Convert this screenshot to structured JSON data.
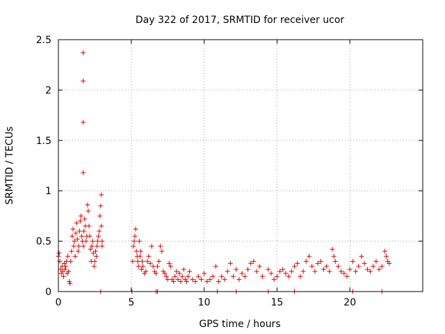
{
  "chart_data": {
    "type": "scatter",
    "title": "Day 322 of 2017, SRMTID for receiver ucor",
    "xlabel": "GPS time / hours",
    "ylabel": "SRMTID / TECUs",
    "xlim": [
      0,
      25
    ],
    "ylim": [
      0,
      2.5
    ],
    "xticks": [
      0,
      5,
      10,
      15,
      20
    ],
    "yticks": [
      0,
      0.5,
      1,
      1.5,
      2,
      2.5
    ],
    "xtick_labels": [
      "0",
      "5",
      "10",
      "15",
      "20"
    ],
    "ytick_labels": [
      "0",
      "0.5",
      "1",
      "1.5",
      "2",
      "2.5"
    ],
    "grid": true,
    "marker": "+",
    "series_color": "#e00000",
    "series": [
      {
        "name": "SRMTID",
        "x": [
          0.0,
          0.05,
          0.1,
          0.15,
          0.2,
          0.25,
          0.3,
          0.35,
          0.4,
          0.45,
          0.5,
          0.55,
          0.6,
          0.65,
          0.7,
          0.75,
          0.8,
          0.85,
          0.9,
          0.95,
          1.0,
          1.05,
          1.1,
          1.15,
          1.2,
          1.25,
          1.3,
          1.35,
          1.4,
          1.45,
          1.5,
          1.55,
          1.6,
          1.65,
          1.7,
          1.7,
          1.7,
          1.7,
          1.72,
          1.75,
          1.8,
          1.85,
          1.9,
          1.95,
          2.0,
          2.05,
          2.1,
          2.15,
          2.2,
          2.25,
          2.3,
          2.35,
          2.4,
          2.45,
          2.5,
          2.55,
          2.6,
          2.65,
          2.7,
          2.75,
          2.8,
          2.85,
          2.9,
          2.95,
          2.95,
          3.0,
          3.0,
          5.1,
          5.15,
          5.2,
          5.25,
          5.3,
          5.35,
          5.4,
          5.45,
          5.5,
          5.55,
          5.6,
          5.65,
          5.7,
          5.75,
          5.8,
          5.9,
          6.0,
          6.1,
          6.2,
          6.3,
          6.4,
          6.5,
          6.6,
          6.7,
          6.8,
          6.9,
          7.0,
          7.1,
          7.2,
          7.3,
          7.4,
          7.5,
          7.6,
          7.7,
          7.8,
          7.9,
          8.0,
          8.1,
          8.2,
          8.3,
          8.4,
          8.5,
          8.6,
          8.7,
          8.8,
          8.9,
          9.0,
          9.2,
          9.4,
          9.6,
          9.8,
          10.0,
          10.2,
          10.4,
          10.6,
          10.8,
          11.0,
          11.2,
          11.4,
          11.6,
          11.8,
          12.0,
          12.2,
          12.4,
          12.6,
          12.8,
          13.0,
          13.2,
          13.4,
          13.6,
          13.8,
          14.0,
          14.4,
          14.6,
          14.8,
          15.0,
          15.2,
          15.4,
          15.6,
          15.8,
          16.0,
          16.2,
          16.4,
          16.6,
          16.8,
          17.0,
          17.2,
          17.4,
          17.6,
          17.8,
          18.0,
          18.2,
          18.4,
          18.6,
          18.8,
          18.9,
          19.0,
          19.2,
          19.4,
          19.6,
          19.8,
          20.0,
          20.2,
          20.4,
          20.6,
          20.8,
          21.0,
          21.2,
          21.4,
          21.6,
          21.8,
          22.0,
          22.2,
          22.4,
          22.5,
          22.6,
          22.7,
          5.05,
          6.7,
          6.8,
          10.9,
          12.2,
          14.4,
          16.2,
          20.2,
          22.2,
          2.9
        ],
        "y": [
          0.35,
          0.38,
          0.3,
          0.22,
          0.18,
          0.25,
          0.2,
          0.15,
          0.28,
          0.22,
          0.25,
          0.3,
          0.18,
          0.35,
          0.2,
          0.1,
          0.08,
          0.3,
          0.4,
          0.55,
          0.62,
          0.45,
          0.5,
          0.35,
          0.58,
          0.68,
          0.52,
          0.4,
          0.45,
          0.6,
          0.7,
          0.75,
          0.55,
          0.5,
          2.37,
          2.09,
          1.68,
          1.18,
          0.45,
          0.6,
          0.72,
          0.65,
          0.5,
          0.55,
          0.86,
          0.8,
          0.65,
          0.55,
          0.42,
          0.3,
          0.45,
          0.5,
          0.38,
          0.25,
          0.3,
          0.4,
          0.35,
          0.45,
          0.5,
          0.55,
          0.6,
          0.75,
          0.85,
          0.96,
          0.65,
          0.5,
          0.45,
          0.3,
          0.45,
          0.5,
          0.55,
          0.62,
          0.4,
          0.35,
          0.3,
          0.25,
          0.5,
          0.35,
          0.4,
          0.22,
          0.3,
          0.25,
          0.18,
          0.2,
          0.3,
          0.35,
          0.28,
          0.45,
          0.25,
          0.2,
          0.18,
          0.25,
          0.3,
          0.45,
          0.4,
          0.2,
          0.18,
          0.15,
          0.12,
          0.28,
          0.25,
          0.12,
          0.1,
          0.15,
          0.2,
          0.12,
          0.18,
          0.1,
          0.15,
          0.22,
          0.12,
          0.1,
          0.15,
          0.2,
          0.12,
          0.1,
          0.15,
          0.12,
          0.18,
          0.1,
          0.12,
          0.15,
          0.25,
          0.1,
          0.15,
          0.12,
          0.2,
          0.28,
          0.15,
          0.22,
          0.12,
          0.18,
          0.15,
          0.22,
          0.28,
          0.3,
          0.2,
          0.25,
          0.15,
          0.22,
          0.18,
          0.12,
          0.15,
          0.2,
          0.22,
          0.18,
          0.15,
          0.2,
          0.25,
          0.28,
          0.15,
          0.2,
          0.3,
          0.35,
          0.25,
          0.2,
          0.28,
          0.3,
          0.22,
          0.25,
          0.2,
          0.42,
          0.35,
          0.3,
          0.25,
          0.2,
          0.18,
          0.15,
          0.22,
          0.3,
          0.2,
          0.25,
          0.35,
          0.28,
          0.22,
          0.2,
          0.25,
          0.3,
          0.22,
          0.25,
          0.4,
          0.35,
          0.3,
          0.28,
          0.0,
          0.0,
          0.0,
          0.0,
          0.0,
          0.0,
          0.0,
          0.0,
          0.0,
          0.0
        ]
      }
    ]
  }
}
